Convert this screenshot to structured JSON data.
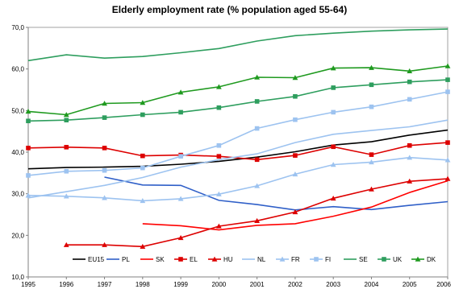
{
  "chart_data": {
    "type": "line",
    "title": "Elderly employment rate (% population aged 55-64)",
    "xlabel": "",
    "ylabel": "",
    "x": [
      "1995",
      "1996",
      "1997",
      "1998",
      "1999",
      "2000",
      "2001",
      "2002",
      "2003",
      "2004",
      "2005",
      "2006"
    ],
    "ylim": [
      10,
      70
    ],
    "yticks": [
      "10,0",
      "20,0",
      "30,0",
      "40,0",
      "50,0",
      "60,0",
      "70,0"
    ],
    "ytick_values": [
      10,
      20,
      30,
      40,
      50,
      60,
      70
    ],
    "grid": false,
    "legend_position": "bottom",
    "series": [
      {
        "name": "EU15",
        "color": "#000000",
        "marker": "none",
        "values": [
          36.0,
          36.3,
          36.4,
          36.6,
          37.1,
          37.8,
          38.8,
          40.1,
          41.7,
          42.5,
          44.1,
          45.3
        ]
      },
      {
        "name": "PL",
        "color": "#2f5fc8",
        "marker": "none",
        "values": [
          null,
          null,
          34.0,
          32.1,
          32.0,
          28.4,
          27.4,
          26.1,
          26.9,
          26.2,
          27.2,
          28.1
        ]
      },
      {
        "name": "SK",
        "color": "#ff0000",
        "marker": "none",
        "values": [
          null,
          null,
          null,
          22.8,
          22.3,
          21.3,
          22.4,
          22.8,
          24.6,
          26.8,
          30.3,
          33.1
        ]
      },
      {
        "name": "EL",
        "color": "#dd0000",
        "marker": "square",
        "values": [
          41.0,
          41.2,
          41.0,
          39.1,
          39.3,
          39.0,
          38.2,
          39.2,
          41.3,
          39.4,
          41.6,
          42.3
        ]
      },
      {
        "name": "HU",
        "color": "#dd0000",
        "marker": "triangle",
        "values": [
          null,
          17.7,
          17.7,
          17.3,
          19.4,
          22.2,
          23.5,
          25.6,
          28.9,
          31.1,
          33.0,
          33.6
        ]
      },
      {
        "name": "NL",
        "color": "#9dc3f0",
        "marker": "none",
        "values": [
          29.0,
          30.5,
          32.0,
          33.9,
          36.4,
          38.2,
          39.6,
          42.3,
          44.3,
          45.2,
          46.1,
          47.7
        ]
      },
      {
        "name": "FR",
        "color": "#9dc3f0",
        "marker": "triangle",
        "values": [
          29.6,
          29.4,
          29.0,
          28.3,
          28.8,
          29.9,
          31.9,
          34.7,
          37.0,
          37.6,
          38.7,
          38.1
        ]
      },
      {
        "name": "FI",
        "color": "#9dc3f0",
        "marker": "square",
        "values": [
          34.4,
          35.4,
          35.6,
          36.2,
          39.0,
          41.6,
          45.7,
          47.8,
          49.6,
          50.9,
          52.7,
          54.5
        ]
      },
      {
        "name": "SE",
        "color": "#2e9e5e",
        "marker": "none",
        "values": [
          62.0,
          63.4,
          62.6,
          63.0,
          63.9,
          64.9,
          66.7,
          68.0,
          68.6,
          69.1,
          69.4,
          69.6
        ]
      },
      {
        "name": "UK",
        "color": "#2e9e5e",
        "marker": "square",
        "values": [
          47.5,
          47.7,
          48.3,
          49.0,
          49.6,
          50.7,
          52.2,
          53.4,
          55.5,
          56.2,
          56.9,
          57.4
        ]
      },
      {
        "name": "DK",
        "color": "#1f9a1f",
        "marker": "triangle",
        "values": [
          49.8,
          49.0,
          51.7,
          51.9,
          54.4,
          55.7,
          58.0,
          57.9,
          60.2,
          60.3,
          59.5,
          60.7
        ]
      }
    ]
  }
}
